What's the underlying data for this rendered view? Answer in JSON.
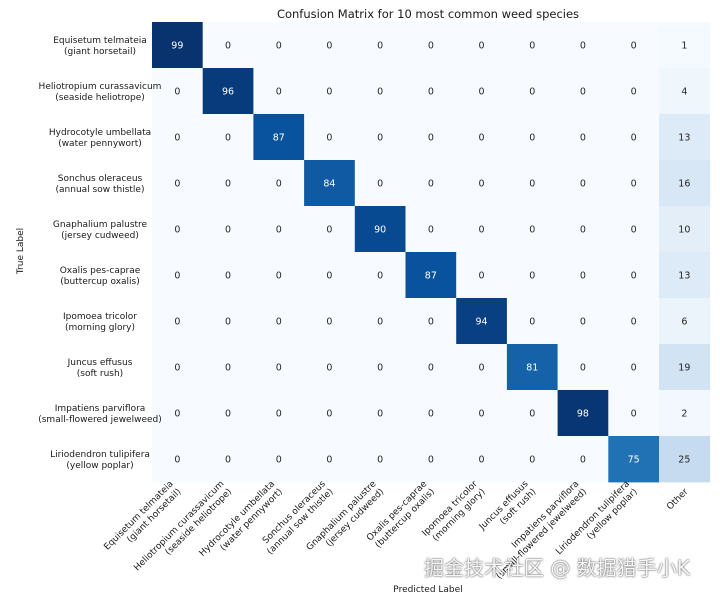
{
  "chart_data": {
    "type": "heatmap",
    "title": "Confusion Matrix for 10 most common weed species",
    "xlabel": "Predicted Label",
    "ylabel": "True Label",
    "row_labels": [
      [
        "Equisetum telmateia",
        "(giant horsetail)"
      ],
      [
        "Heliotropium curassavicum",
        "(seaside heliotrope)"
      ],
      [
        "Hydrocotyle umbellata",
        "(water pennywort)"
      ],
      [
        "Sonchus oleraceus",
        "(annual sow thistle)"
      ],
      [
        "Gnaphalium palustre",
        "(jersey cudweed)"
      ],
      [
        "Oxalis pes-caprae",
        "(buttercup oxalis)"
      ],
      [
        "Ipomoea tricolor",
        "(morning glory)"
      ],
      [
        "Juncus effusus",
        "(soft rush)"
      ],
      [
        "Impatiens parviflora",
        "(small-flowered jewelweed)"
      ],
      [
        "Liriodendron tulipifera",
        "(yellow poplar)"
      ]
    ],
    "col_labels": [
      [
        "Equisetum telmateia",
        "(giant horsetail)"
      ],
      [
        "Heliotropium curassavicum",
        "(seaside heliotrope)"
      ],
      [
        "Hydrocotyle umbellata",
        "(water pennywort)"
      ],
      [
        "Sonchus oleraceus",
        "(annual sow thistle)"
      ],
      [
        "Gnaphalium palustre",
        "(jersey cudweed)"
      ],
      [
        "Oxalis pes-caprae",
        "(buttercup oxalis)"
      ],
      [
        "Ipomoea tricolor",
        "(morning glory)"
      ],
      [
        "Juncus effusus",
        "(soft rush)"
      ],
      [
        "Impatiens parviflora",
        "(small-flowered jewelweed)"
      ],
      [
        "Liriodendron tulipifera",
        "(yellow poplar)"
      ],
      [
        "Other"
      ]
    ],
    "values": [
      [
        99,
        0,
        0,
        0,
        0,
        0,
        0,
        0,
        0,
        0,
        1
      ],
      [
        0,
        96,
        0,
        0,
        0,
        0,
        0,
        0,
        0,
        0,
        4
      ],
      [
        0,
        0,
        87,
        0,
        0,
        0,
        0,
        0,
        0,
        0,
        13
      ],
      [
        0,
        0,
        0,
        84,
        0,
        0,
        0,
        0,
        0,
        0,
        16
      ],
      [
        0,
        0,
        0,
        0,
        90,
        0,
        0,
        0,
        0,
        0,
        10
      ],
      [
        0,
        0,
        0,
        0,
        0,
        87,
        0,
        0,
        0,
        0,
        13
      ],
      [
        0,
        0,
        0,
        0,
        0,
        0,
        94,
        0,
        0,
        0,
        6
      ],
      [
        0,
        0,
        0,
        0,
        0,
        0,
        0,
        81,
        0,
        0,
        19
      ],
      [
        0,
        0,
        0,
        0,
        0,
        0,
        0,
        0,
        98,
        0,
        2
      ],
      [
        0,
        0,
        0,
        0,
        0,
        0,
        0,
        0,
        0,
        75,
        25
      ]
    ],
    "value_range": [
      0,
      100
    ],
    "colormap": [
      "#f7fbff",
      "#08306b"
    ]
  },
  "watermark": "掘金技术社区 @ 数据猎手小K"
}
